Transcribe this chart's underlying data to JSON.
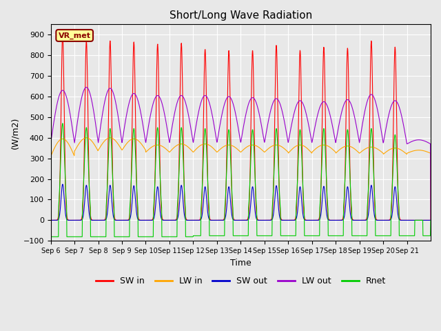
{
  "title": "Short/Long Wave Radiation",
  "xlabel": "Time",
  "ylabel": "(W/m2)",
  "ylim": [
    -100,
    950
  ],
  "yticks": [
    -100,
    0,
    100,
    200,
    300,
    400,
    500,
    600,
    700,
    800,
    900
  ],
  "num_days": 15,
  "x_tick_labels": [
    "Sep 6",
    "Sep 7",
    "Sep 8",
    "Sep 9",
    "Sep 10",
    "Sep 11",
    "Sep 12",
    "Sep 13",
    "Sep 14",
    "Sep 15",
    "Sep 16",
    "Sep 17",
    "Sep 18",
    "Sep 19",
    "Sep 20",
    "Sep 21"
  ],
  "colors": {
    "SW_in": "#ff0000",
    "LW_in": "#ffa500",
    "SW_out": "#0000cc",
    "LW_out": "#9900cc",
    "Rnet": "#00cc00"
  },
  "legend_labels": [
    "SW in",
    "LW in",
    "SW out",
    "LW out",
    "Rnet"
  ],
  "legend_keys": [
    "SW_in",
    "LW_in",
    "SW_out",
    "LW_out",
    "Rnet"
  ],
  "station_label": "VR_met",
  "background_color": "#e8e8e8",
  "sw_in_peaks": [
    900,
    870,
    870,
    865,
    855,
    860,
    830,
    825,
    825,
    850,
    825,
    840,
    835,
    870,
    840,
    0
  ],
  "lw_in_base": [
    310,
    335,
    340,
    340,
    330,
    330,
    330,
    330,
    330,
    330,
    325,
    330,
    325,
    325,
    320,
    325
  ],
  "lw_in_peaks": [
    395,
    400,
    400,
    395,
    365,
    370,
    370,
    365,
    365,
    365,
    365,
    365,
    360,
    355,
    350,
    340
  ],
  "sw_out_peaks": [
    175,
    170,
    170,
    168,
    163,
    170,
    163,
    163,
    163,
    168,
    163,
    165,
    163,
    170,
    163,
    0
  ],
  "rnet_peaks": [
    470,
    450,
    445,
    445,
    450,
    450,
    445,
    440,
    440,
    445,
    440,
    445,
    440,
    445,
    415,
    0
  ],
  "rnet_night": [
    -80,
    -80,
    -80,
    -80,
    -80,
    -80,
    -75,
    -75,
    -75,
    -75,
    -75,
    -75,
    -75,
    -75,
    -75,
    -75
  ],
  "lw_out_base": [
    375,
    375,
    375,
    375,
    375,
    375,
    375,
    375,
    375,
    375,
    375,
    375,
    375,
    375,
    370,
    370
  ],
  "lw_out_peaks": [
    630,
    645,
    640,
    615,
    605,
    605,
    605,
    600,
    595,
    590,
    580,
    575,
    585,
    610,
    580,
    390
  ]
}
